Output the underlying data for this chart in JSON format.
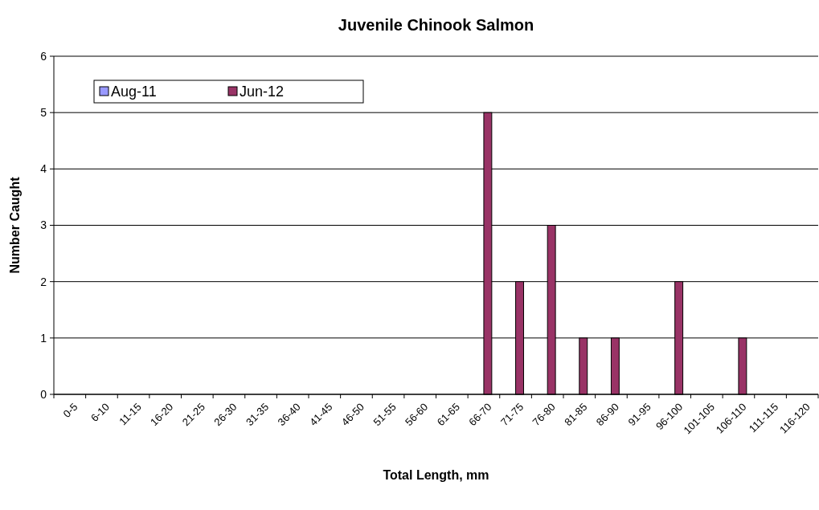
{
  "chart_data": {
    "type": "bar",
    "title": "Juvenile Chinook Salmon",
    "xlabel": "Total Length, mm",
    "ylabel": "Number Caught",
    "categories": [
      "0-5",
      "6-10",
      "11-15",
      "16-20",
      "21-25",
      "26-30",
      "31-35",
      "36-40",
      "41-45",
      "46-50",
      "51-55",
      "56-60",
      "61-65",
      "66-70",
      "71-75",
      "76-80",
      "81-85",
      "86-90",
      "91-95",
      "96-100",
      "101-105",
      "106-110",
      "111-115",
      "116-120"
    ],
    "series": [
      {
        "name": "Aug-11",
        "color": "#9999ff",
        "values": [
          0,
          0,
          0,
          0,
          0,
          0,
          0,
          0,
          0,
          0,
          0,
          0,
          0,
          0,
          0,
          0,
          0,
          0,
          0,
          0,
          0,
          0,
          0,
          0
        ]
      },
      {
        "name": "Jun-12",
        "color": "#993366",
        "values": [
          0,
          0,
          0,
          0,
          0,
          0,
          0,
          0,
          0,
          0,
          0,
          0,
          0,
          5,
          2,
          3,
          1,
          1,
          0,
          2,
          0,
          1,
          0,
          0
        ]
      }
    ],
    "ylim": [
      0,
      6
    ],
    "yticks": [
      0,
      1,
      2,
      3,
      4,
      5,
      6
    ],
    "grid": "y",
    "legend": "top left"
  }
}
